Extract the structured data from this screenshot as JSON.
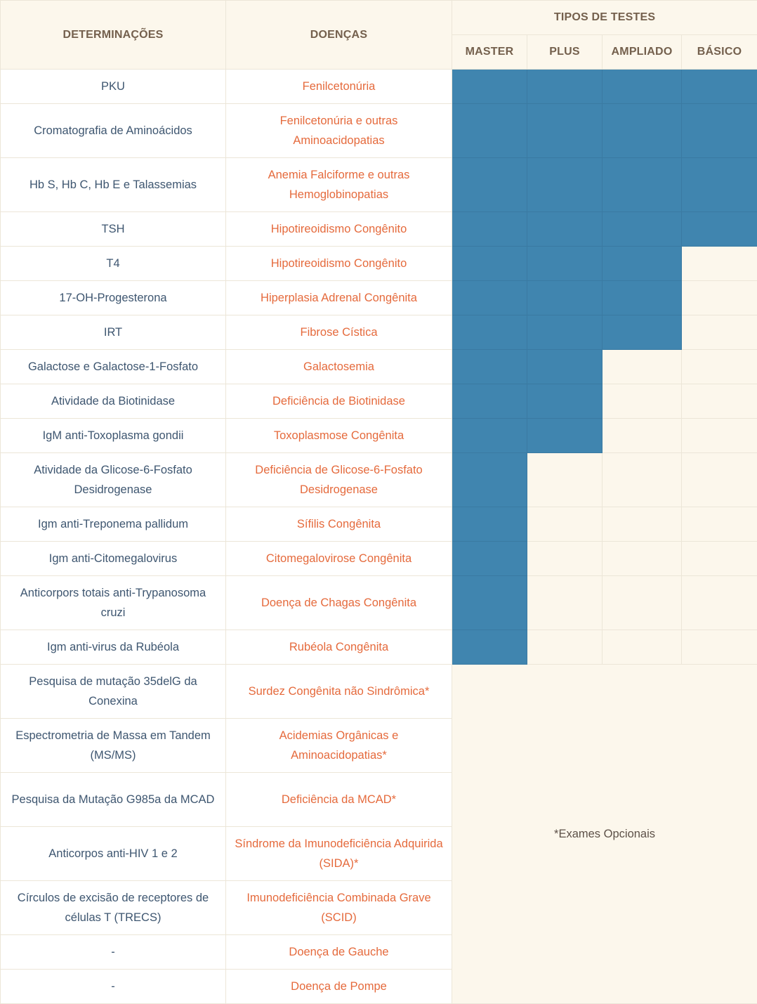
{
  "header": {
    "determinations": "DETERMINAÇÕES",
    "diseases": "DOENÇAS",
    "test_types": "TIPOS DE TESTES",
    "tests": [
      "MASTER",
      "PLUS",
      "AMPLIADO",
      "BÁSICO"
    ]
  },
  "colors": {
    "included": "#4085af",
    "not_included": "#fcf7ec",
    "disease_text": "#e56a3c",
    "determination_text": "#3e5670"
  },
  "rows": [
    {
      "det": "PKU",
      "disease": "Fenilcetonúria",
      "inc": [
        true,
        true,
        true,
        true
      ]
    },
    {
      "det": "Cromatografia de Aminoácidos",
      "disease": "Fenilcetonúria e outras Aminoacidopatias",
      "inc": [
        true,
        true,
        true,
        true
      ]
    },
    {
      "det": "Hb S, Hb C, Hb E e Talassemias",
      "disease": "Anemia Falciforme e outras Hemoglobinopatias",
      "inc": [
        true,
        true,
        true,
        true
      ]
    },
    {
      "det": "TSH",
      "disease": "Hipotireoidismo Congênito",
      "inc": [
        true,
        true,
        true,
        true
      ]
    },
    {
      "det": "T4",
      "disease": "Hipotireoidismo Congênito",
      "inc": [
        true,
        true,
        true,
        false
      ]
    },
    {
      "det": "17-OH-Progesterona",
      "disease": "Hiperplasia Adrenal Congênita",
      "inc": [
        true,
        true,
        true,
        false
      ]
    },
    {
      "det": "IRT",
      "disease": "Fibrose Cística",
      "inc": [
        true,
        true,
        true,
        false
      ]
    },
    {
      "det": "Galactose e Galactose-1-Fosfato",
      "disease": "Galactosemia",
      "inc": [
        true,
        true,
        false,
        false
      ]
    },
    {
      "det": "Atividade da Biotinidase",
      "disease": "Deficiência de Biotinidase",
      "inc": [
        true,
        true,
        false,
        false
      ]
    },
    {
      "det": "IgM anti-Toxoplasma gondii",
      "disease": "Toxoplasmose Congênita",
      "inc": [
        true,
        true,
        false,
        false
      ]
    },
    {
      "det": "Atividade da Glicose-6-Fosfato Desidrogenase",
      "disease": "Deficiência de Glicose-6-Fosfato Desidrogenase",
      "inc": [
        true,
        false,
        false,
        false
      ]
    },
    {
      "det": "Igm anti-Treponema pallidum",
      "disease": "Sífilis Congênita",
      "inc": [
        true,
        false,
        false,
        false
      ]
    },
    {
      "det": "Igm anti-Citomegalovirus",
      "disease": "Citomegalovirose Congênita",
      "inc": [
        true,
        false,
        false,
        false
      ]
    },
    {
      "det": "Anticorpors totais anti-Trypanosoma cruzi",
      "disease": "Doença de Chagas Congênita",
      "inc": [
        true,
        false,
        false,
        false
      ]
    },
    {
      "det": "Igm anti-virus da Rubéola",
      "disease": "Rubéola Congênita",
      "inc": [
        true,
        false,
        false,
        false
      ]
    }
  ],
  "optional_rows": [
    {
      "det": "Pesquisa de mutação 35delG da Conexina",
      "disease": "Surdez Congênita não Sindrômica*"
    },
    {
      "det": "Espectrometria de Massa em Tandem (MS/MS)",
      "disease": "Acidemias Orgânicas e Aminoacidopatias*"
    },
    {
      "det": "Pesquisa da Mutação G985a da MCAD",
      "disease": "Deficiência da MCAD*"
    },
    {
      "det": "Anticorpos anti-HIV 1 e 2",
      "disease": "Síndrome da Imunodeficiência Adquirida (SIDA)*"
    },
    {
      "det": "Círculos de excisão de receptores de células T (TRECS)",
      "disease": "Imunodeficiência Combinada Grave (SCID)"
    },
    {
      "det": "-",
      "disease": "Doença de Gauche"
    },
    {
      "det": "-",
      "disease": "Doença de Pompe"
    }
  ],
  "optional_note": "*Exames Opcionais"
}
